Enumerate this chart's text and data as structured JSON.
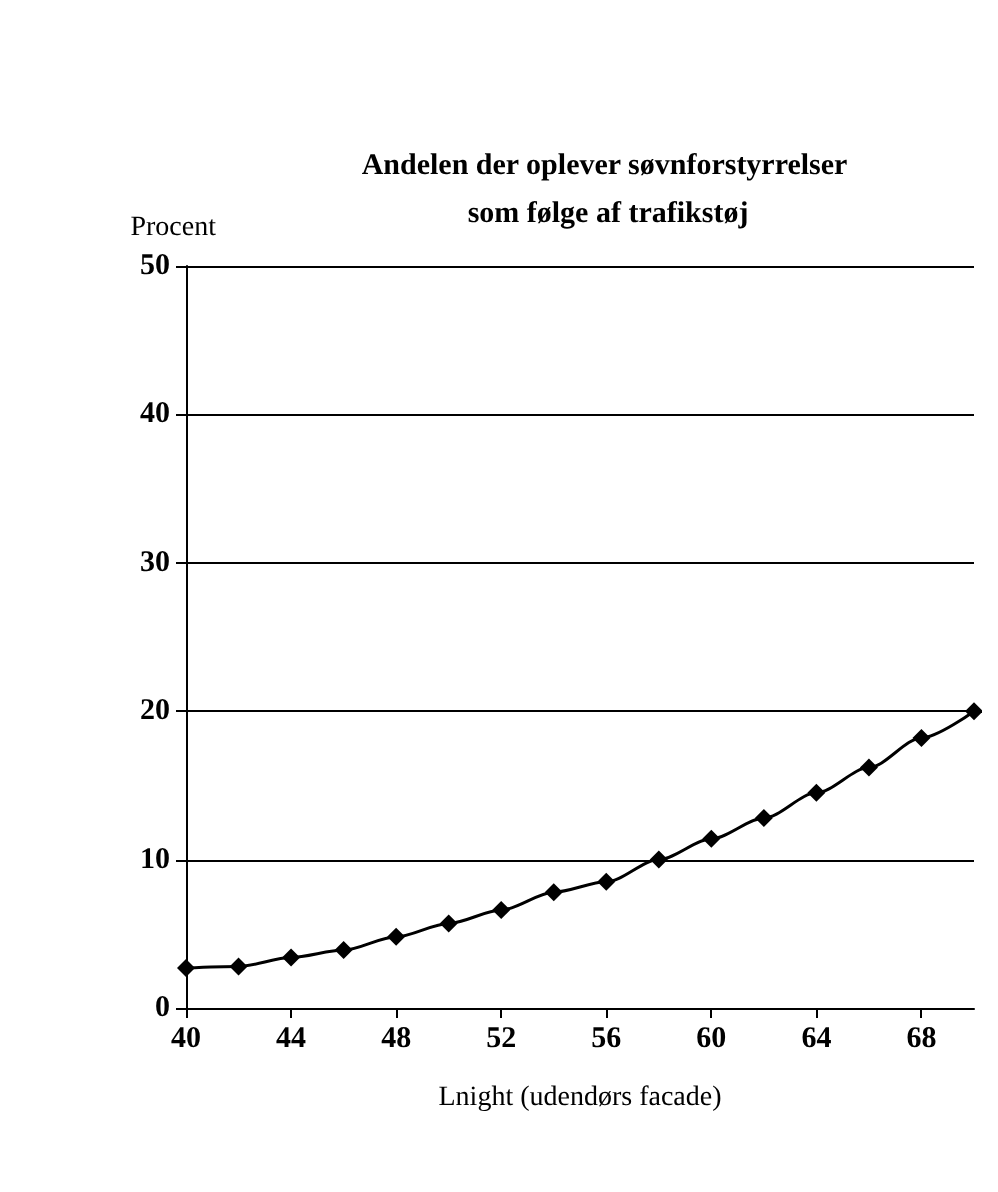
{
  "chart_data": {
    "type": "line",
    "title": "Andelen der oplever søvnforstyrrelser som følge af trafikstøj",
    "ylabel": "Procent",
    "xlabel": "Lnight (udendørs facade)",
    "x": [
      40,
      42,
      44,
      46,
      48,
      50,
      52,
      54,
      56,
      58,
      60,
      62,
      64,
      66,
      68,
      70
    ],
    "series": [
      {
        "color": "#000000",
        "values": [
          2.7,
          2.8,
          3.4,
          3.9,
          4.8,
          5.7,
          6.6,
          7.8,
          8.5,
          10.0,
          11.4,
          12.8,
          14.5,
          16.2,
          18.2,
          20.0
        ]
      }
    ],
    "xlim": [
      40,
      70
    ],
    "xticks": [
      40,
      44,
      48,
      52,
      56,
      60,
      64,
      68
    ],
    "ylim": [
      0,
      50
    ],
    "yticks": [
      0,
      10,
      20,
      30,
      40,
      50
    ],
    "grid": "y",
    "marker": "diamond",
    "line_style": "solid"
  }
}
